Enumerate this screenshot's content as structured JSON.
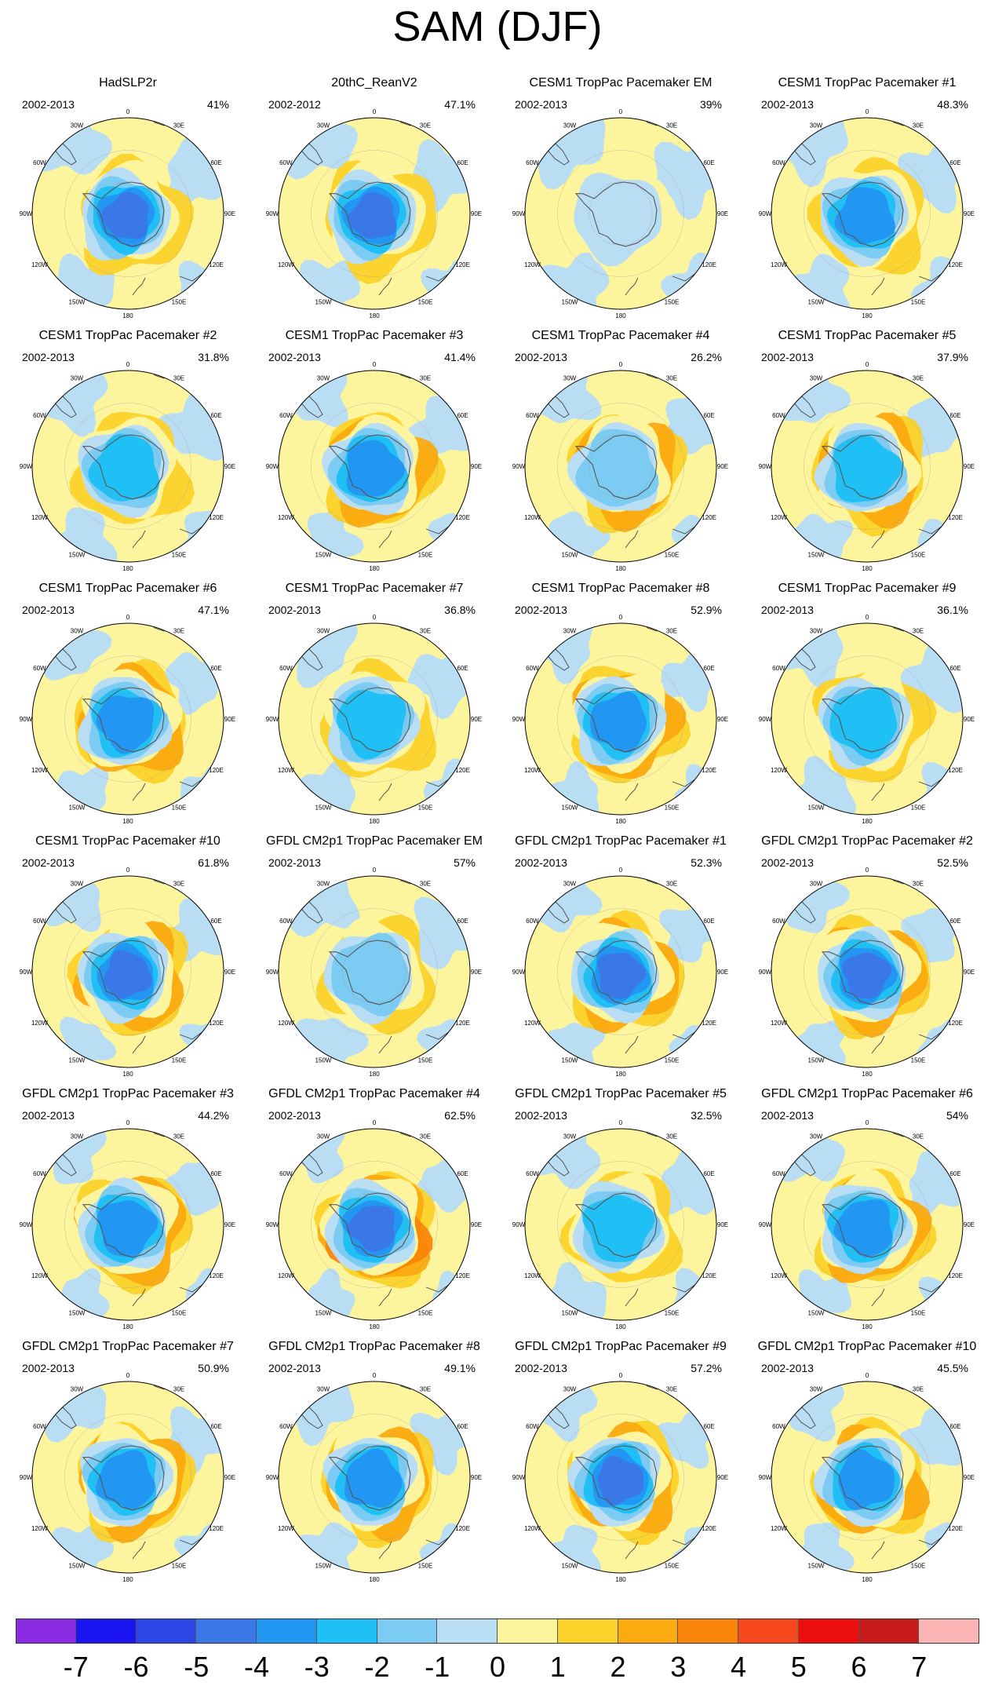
{
  "title": "SAM (DJF)",
  "period_default": "2002-2013",
  "lon_labels": [
    "0",
    "30E",
    "60E",
    "90E",
    "120E",
    "150E",
    "180",
    "150W",
    "120W",
    "90W",
    "60W",
    "30W"
  ],
  "colorbar": {
    "colors": [
      "#8a2be2",
      "#1a14f0",
      "#2c46e6",
      "#3a78e8",
      "#2196f3",
      "#1ec0f5",
      "#7ccbf2",
      "#b9def4",
      "#fdf59e",
      "#fcd22a",
      "#fbaa10",
      "#f9860a",
      "#f7481c",
      "#ec0d0d",
      "#c81c1c",
      "#fcb4b4"
    ],
    "labels": [
      "-7",
      "-6",
      "-5",
      "-4",
      "-3",
      "-2",
      "-1",
      "0",
      "1",
      "2",
      "3",
      "4",
      "5",
      "6",
      "7"
    ]
  },
  "panels": [
    {
      "title": "HadSLP2r",
      "period": "2002-2013",
      "pct": "41%",
      "strength": 0.75,
      "pos": 0.3
    },
    {
      "title": "20thC_ReanV2",
      "period": "2002-2012",
      "pct": "47.1%",
      "strength": 0.8,
      "pos": 0.35
    },
    {
      "title": "CESM1 TropPac Pacemaker EM",
      "period": "2002-2013",
      "pct": "39%",
      "strength": 0.2,
      "pos": 0.05
    },
    {
      "title": "CESM1 TropPac Pacemaker #1",
      "period": "2002-2013",
      "pct": "48.3%",
      "strength": 0.7,
      "pos": 0.3
    },
    {
      "title": "CESM1 TropPac Pacemaker #2",
      "period": "2002-2013",
      "pct": "31.8%",
      "strength": 0.45,
      "pos": 0.3
    },
    {
      "title": "CESM1 TropPac Pacemaker #3",
      "period": "2002-2013",
      "pct": "41.4%",
      "strength": 0.6,
      "pos": 0.55
    },
    {
      "title": "CESM1 TropPac Pacemaker #4",
      "period": "2002-2013",
      "pct": "26.2%",
      "strength": 0.4,
      "pos": 0.55
    },
    {
      "title": "CESM1 TropPac Pacemaker #5",
      "period": "2002-2013",
      "pct": "37.9%",
      "strength": 0.45,
      "pos": 0.6
    },
    {
      "title": "CESM1 TropPac Pacemaker #6",
      "period": "2002-2013",
      "pct": "47.1%",
      "strength": 0.65,
      "pos": 0.6
    },
    {
      "title": "CESM1 TropPac Pacemaker #7",
      "period": "2002-2013",
      "pct": "36.8%",
      "strength": 0.5,
      "pos": 0.4
    },
    {
      "title": "CESM1 TropPac Pacemaker #8",
      "period": "2002-2013",
      "pct": "52.9%",
      "strength": 0.6,
      "pos": 0.75
    },
    {
      "title": "CESM1 TropPac Pacemaker #9",
      "period": "2002-2013",
      "pct": "36.1%",
      "strength": 0.5,
      "pos": 0.3
    },
    {
      "title": "CESM1 TropPac Pacemaker #10",
      "period": "2002-2013",
      "pct": "61.8%",
      "strength": 0.75,
      "pos": 0.6
    },
    {
      "title": "GFDL CM2p1 TropPac Pacemaker EM",
      "period": "2002-2013",
      "pct": "57%",
      "strength": 0.3,
      "pos": 0.2
    },
    {
      "title": "GFDL CM2p1 TropPac Pacemaker #1",
      "period": "2002-2013",
      "pct": "52.3%",
      "strength": 0.8,
      "pos": 0.7
    },
    {
      "title": "GFDL CM2p1 TropPac Pacemaker #2",
      "period": "2002-2013",
      "pct": "52.5%",
      "strength": 0.8,
      "pos": 0.65
    },
    {
      "title": "GFDL CM2p1 TropPac Pacemaker #3",
      "period": "2002-2013",
      "pct": "44.2%",
      "strength": 0.7,
      "pos": 0.7
    },
    {
      "title": "GFDL CM2p1 TropPac Pacemaker #4",
      "period": "2002-2013",
      "pct": "62.5%",
      "strength": 0.8,
      "pos": 0.85
    },
    {
      "title": "GFDL CM2p1 TropPac Pacemaker #5",
      "period": "2002-2013",
      "pct": "32.5%",
      "strength": 0.45,
      "pos": 0.35
    },
    {
      "title": "GFDL CM2p1 TropPac Pacemaker #6",
      "period": "2002-2013",
      "pct": "54%",
      "strength": 0.7,
      "pos": 0.6
    },
    {
      "title": "GFDL CM2p1 TropPac Pacemaker #7",
      "period": "2002-2013",
      "pct": "50.9%",
      "strength": 0.7,
      "pos": 0.5
    },
    {
      "title": "GFDL CM2p1 TropPac Pacemaker #8",
      "period": "2002-2013",
      "pct": "49.1%",
      "strength": 0.7,
      "pos": 0.5
    },
    {
      "title": "GFDL CM2p1 TropPac Pacemaker #9",
      "period": "2002-2013",
      "pct": "57.2%",
      "strength": 0.75,
      "pos": 0.75
    },
    {
      "title": "GFDL CM2p1 TropPac Pacemaker #10",
      "period": "2002-2013",
      "pct": "45.5%",
      "strength": 0.65,
      "pos": 0.55
    }
  ]
}
